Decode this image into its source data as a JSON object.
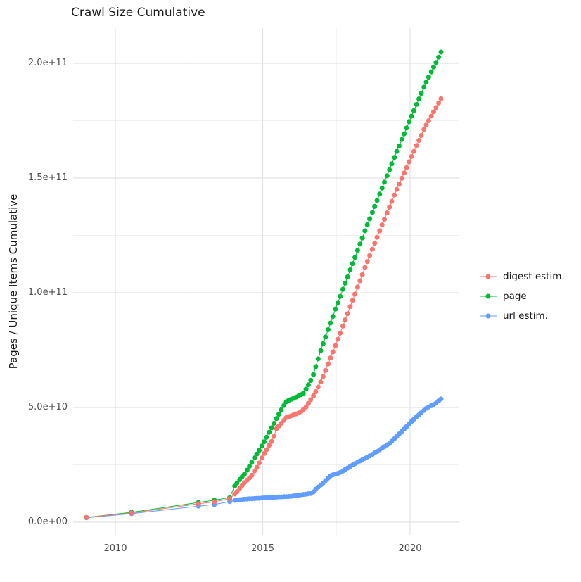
{
  "chart_data": {
    "type": "scatter",
    "title": "Crawl Size Cumulative",
    "xlabel": "",
    "ylabel": "Pages / Unique Items Cumulative",
    "value_unit": "1e9 (values below are billions of pages / unique items)",
    "grid": true,
    "x_axis": {
      "ticks": [
        {
          "value": 2010,
          "label": "2010"
        },
        {
          "value": 2015,
          "label": "2015"
        },
        {
          "value": 2020,
          "label": "2020"
        }
      ],
      "minor": [
        2012.5,
        2017.5
      ],
      "range": [
        2008.45,
        2021.65
      ]
    },
    "y_axis": {
      "ticks": [
        {
          "value": 0,
          "label": "0.0e+00"
        },
        {
          "value": 50,
          "label": "5.0e+10"
        },
        {
          "value": 100,
          "label": "1.0e+11"
        },
        {
          "value": 150,
          "label": "1.5e+11"
        },
        {
          "value": 200,
          "label": "2.0e+11"
        }
      ],
      "minor": [
        25,
        75,
        125,
        175
      ],
      "range": [
        -5.5,
        215
      ]
    },
    "legend": {
      "position": "right",
      "items": [
        {
          "label": "digest estim.",
          "color": "#F8766D"
        },
        {
          "label": "page",
          "color": "#00BA38"
        },
        {
          "label": "url estim.",
          "color": "#619CFF"
        }
      ]
    },
    "draw_order": [
      "page",
      "url estim.",
      "digest estim."
    ],
    "series": [
      {
        "name": "digest estim.",
        "color": "#F8766D",
        "points": [
          [
            2009.02,
            2.1
          ],
          [
            2010.55,
            4.0
          ],
          [
            2012.82,
            8.0
          ],
          [
            2013.36,
            8.9
          ],
          [
            2013.88,
            10.2
          ],
          [
            2014.05,
            12.3
          ],
          [
            2014.13,
            13.3
          ],
          [
            2014.22,
            14.8
          ],
          [
            2014.3,
            16.0
          ],
          [
            2014.38,
            17.2
          ],
          [
            2014.47,
            18.3
          ],
          [
            2014.55,
            19.3
          ],
          [
            2014.63,
            20.5
          ],
          [
            2014.72,
            22.3
          ],
          [
            2014.8,
            23.9
          ],
          [
            2014.88,
            25.8
          ],
          [
            2014.97,
            28.0
          ],
          [
            2015.05,
            29.9
          ],
          [
            2015.13,
            31.6
          ],
          [
            2015.22,
            33.5
          ],
          [
            2015.3,
            35.2
          ],
          [
            2015.38,
            37.4
          ],
          [
            2015.47,
            40.8
          ],
          [
            2015.55,
            42.0
          ],
          [
            2015.63,
            43.1
          ],
          [
            2015.72,
            44.4
          ],
          [
            2015.8,
            45.6
          ],
          [
            2015.88,
            46.0
          ],
          [
            2015.97,
            46.4
          ],
          [
            2016.05,
            46.8
          ],
          [
            2016.13,
            47.2
          ],
          [
            2016.22,
            47.6
          ],
          [
            2016.3,
            48.2
          ],
          [
            2016.38,
            49.1
          ],
          [
            2016.47,
            50.2
          ],
          [
            2016.55,
            51.8
          ],
          [
            2016.63,
            53.4
          ],
          [
            2016.72,
            55.1
          ],
          [
            2016.8,
            56.9
          ],
          [
            2016.88,
            58.9
          ],
          [
            2016.97,
            61.1
          ],
          [
            2017.05,
            63.5
          ],
          [
            2017.13,
            66.1
          ],
          [
            2017.22,
            69.0
          ],
          [
            2017.3,
            71.6
          ],
          [
            2017.38,
            74.2
          ],
          [
            2017.47,
            77.0
          ],
          [
            2017.55,
            79.7
          ],
          [
            2017.63,
            82.4
          ],
          [
            2017.72,
            85.5
          ],
          [
            2017.8,
            88.2
          ],
          [
            2017.88,
            90.9
          ],
          [
            2017.97,
            94.0
          ],
          [
            2018.05,
            96.7
          ],
          [
            2018.13,
            99.4
          ],
          [
            2018.22,
            102.5
          ],
          [
            2018.3,
            105.2
          ],
          [
            2018.38,
            107.9
          ],
          [
            2018.47,
            111.0
          ],
          [
            2018.55,
            113.6
          ],
          [
            2018.63,
            116.2
          ],
          [
            2018.72,
            119.0
          ],
          [
            2018.8,
            121.6
          ],
          [
            2018.88,
            124.2
          ],
          [
            2018.97,
            127.0
          ],
          [
            2019.05,
            129.6
          ],
          [
            2019.13,
            132.0
          ],
          [
            2019.22,
            134.8
          ],
          [
            2019.3,
            137.3
          ],
          [
            2019.38,
            139.8
          ],
          [
            2019.47,
            142.6
          ],
          [
            2019.55,
            145.0
          ],
          [
            2019.63,
            147.3
          ],
          [
            2019.72,
            149.9
          ],
          [
            2019.8,
            152.2
          ],
          [
            2019.88,
            154.5
          ],
          [
            2019.97,
            157.1
          ],
          [
            2020.05,
            159.4
          ],
          [
            2020.13,
            161.6
          ],
          [
            2020.22,
            164.2
          ],
          [
            2020.3,
            166.4
          ],
          [
            2020.38,
            168.6
          ],
          [
            2020.47,
            171.2
          ],
          [
            2020.55,
            173.1
          ],
          [
            2020.63,
            175.0
          ],
          [
            2020.72,
            177.0
          ],
          [
            2020.8,
            178.9
          ],
          [
            2020.88,
            180.7
          ],
          [
            2020.97,
            182.7
          ],
          [
            2021.05,
            184.6
          ]
        ]
      },
      {
        "name": "page",
        "color": "#00BA38",
        "points": [
          [
            2009.02,
            2.1
          ],
          [
            2010.55,
            4.3
          ],
          [
            2012.82,
            8.6
          ],
          [
            2013.36,
            9.6
          ],
          [
            2013.88,
            10.7
          ],
          [
            2014.05,
            15.8
          ],
          [
            2014.13,
            17.1
          ],
          [
            2014.22,
            18.6
          ],
          [
            2014.3,
            19.8
          ],
          [
            2014.38,
            21.0
          ],
          [
            2014.47,
            22.7
          ],
          [
            2014.55,
            24.4
          ],
          [
            2014.63,
            26.1
          ],
          [
            2014.72,
            28.0
          ],
          [
            2014.8,
            29.7
          ],
          [
            2014.88,
            31.3
          ],
          [
            2014.97,
            33.2
          ],
          [
            2015.05,
            35.1
          ],
          [
            2015.13,
            37.0
          ],
          [
            2015.22,
            39.2
          ],
          [
            2015.3,
            41.1
          ],
          [
            2015.38,
            43.1
          ],
          [
            2015.47,
            45.2
          ],
          [
            2015.55,
            47.1
          ],
          [
            2015.63,
            49.0
          ],
          [
            2015.72,
            50.9
          ],
          [
            2015.8,
            52.5
          ],
          [
            2015.88,
            53.1
          ],
          [
            2015.97,
            53.6
          ],
          [
            2016.05,
            54.0
          ],
          [
            2016.13,
            54.5
          ],
          [
            2016.22,
            55.1
          ],
          [
            2016.3,
            55.6
          ],
          [
            2016.38,
            56.2
          ],
          [
            2016.47,
            58.0
          ],
          [
            2016.55,
            59.9
          ],
          [
            2016.63,
            61.8
          ],
          [
            2016.72,
            64.4
          ],
          [
            2016.8,
            67.8
          ],
          [
            2016.88,
            71.2
          ],
          [
            2016.97,
            74.8
          ],
          [
            2017.05,
            77.8
          ],
          [
            2017.13,
            80.7
          ],
          [
            2017.22,
            83.9
          ],
          [
            2017.3,
            86.8
          ],
          [
            2017.38,
            89.7
          ],
          [
            2017.47,
            92.9
          ],
          [
            2017.55,
            95.7
          ],
          [
            2017.63,
            98.4
          ],
          [
            2017.72,
            101.5
          ],
          [
            2017.8,
            104.2
          ],
          [
            2017.88,
            106.9
          ],
          [
            2017.97,
            110.0
          ],
          [
            2018.05,
            112.7
          ],
          [
            2018.13,
            115.4
          ],
          [
            2018.22,
            118.5
          ],
          [
            2018.3,
            121.2
          ],
          [
            2018.38,
            123.9
          ],
          [
            2018.47,
            127.0
          ],
          [
            2018.55,
            129.6
          ],
          [
            2018.63,
            132.2
          ],
          [
            2018.72,
            135.0
          ],
          [
            2018.8,
            137.6
          ],
          [
            2018.88,
            140.2
          ],
          [
            2018.97,
            143.0
          ],
          [
            2019.05,
            145.6
          ],
          [
            2019.13,
            148.2
          ],
          [
            2019.22,
            151.0
          ],
          [
            2019.3,
            153.6
          ],
          [
            2019.38,
            156.2
          ],
          [
            2019.47,
            159.0
          ],
          [
            2019.55,
            161.6
          ],
          [
            2019.63,
            164.0
          ],
          [
            2019.72,
            166.8
          ],
          [
            2019.8,
            169.3
          ],
          [
            2019.88,
            171.8
          ],
          [
            2019.97,
            174.6
          ],
          [
            2020.05,
            177.0
          ],
          [
            2020.13,
            179.4
          ],
          [
            2020.22,
            182.1
          ],
          [
            2020.3,
            184.5
          ],
          [
            2020.38,
            186.9
          ],
          [
            2020.47,
            189.6
          ],
          [
            2020.55,
            191.8
          ],
          [
            2020.63,
            194.0
          ],
          [
            2020.72,
            196.3
          ],
          [
            2020.8,
            198.4
          ],
          [
            2020.88,
            200.4
          ],
          [
            2020.97,
            202.7
          ],
          [
            2021.05,
            204.9
          ]
        ]
      },
      {
        "name": "url estim.",
        "color": "#619CFF",
        "points": [
          [
            2009.02,
            1.9
          ],
          [
            2010.55,
            3.7
          ],
          [
            2012.82,
            7.0
          ],
          [
            2013.36,
            7.7
          ],
          [
            2013.88,
            9.0
          ],
          [
            2014.05,
            9.5
          ],
          [
            2014.13,
            9.7
          ],
          [
            2014.22,
            9.8
          ],
          [
            2014.3,
            9.9
          ],
          [
            2014.38,
            10.0
          ],
          [
            2014.47,
            10.1
          ],
          [
            2014.55,
            10.2
          ],
          [
            2014.63,
            10.2
          ],
          [
            2014.72,
            10.3
          ],
          [
            2014.8,
            10.4
          ],
          [
            2014.88,
            10.4
          ],
          [
            2014.97,
            10.5
          ],
          [
            2015.05,
            10.6
          ],
          [
            2015.13,
            10.6
          ],
          [
            2015.22,
            10.7
          ],
          [
            2015.3,
            10.8
          ],
          [
            2015.38,
            10.8
          ],
          [
            2015.47,
            10.9
          ],
          [
            2015.55,
            11.0
          ],
          [
            2015.63,
            11.0
          ],
          [
            2015.72,
            11.1
          ],
          [
            2015.8,
            11.1
          ],
          [
            2015.88,
            11.2
          ],
          [
            2015.97,
            11.3
          ],
          [
            2016.05,
            11.5
          ],
          [
            2016.13,
            11.6
          ],
          [
            2016.22,
            11.8
          ],
          [
            2016.3,
            11.9
          ],
          [
            2016.38,
            12.1
          ],
          [
            2016.47,
            12.2
          ],
          [
            2016.55,
            12.4
          ],
          [
            2016.63,
            12.5
          ],
          [
            2016.72,
            13.2
          ],
          [
            2016.8,
            14.4
          ],
          [
            2016.88,
            15.3
          ],
          [
            2016.97,
            16.2
          ],
          [
            2017.05,
            17.1
          ],
          [
            2017.13,
            18.1
          ],
          [
            2017.22,
            19.2
          ],
          [
            2017.3,
            20.2
          ],
          [
            2017.38,
            20.6
          ],
          [
            2017.47,
            21.0
          ],
          [
            2017.55,
            21.3
          ],
          [
            2017.63,
            21.7
          ],
          [
            2017.72,
            22.3
          ],
          [
            2017.8,
            23.0
          ],
          [
            2017.88,
            23.6
          ],
          [
            2017.97,
            24.3
          ],
          [
            2018.05,
            24.9
          ],
          [
            2018.13,
            25.5
          ],
          [
            2018.22,
            26.1
          ],
          [
            2018.3,
            26.7
          ],
          [
            2018.38,
            27.2
          ],
          [
            2018.47,
            27.8
          ],
          [
            2018.55,
            28.4
          ],
          [
            2018.63,
            28.9
          ],
          [
            2018.72,
            29.5
          ],
          [
            2018.8,
            30.2
          ],
          [
            2018.88,
            30.8
          ],
          [
            2018.97,
            31.6
          ],
          [
            2019.05,
            32.3
          ],
          [
            2019.13,
            32.9
          ],
          [
            2019.22,
            33.7
          ],
          [
            2019.3,
            34.3
          ],
          [
            2019.38,
            35.3
          ],
          [
            2019.47,
            36.4
          ],
          [
            2019.55,
            37.4
          ],
          [
            2019.63,
            38.5
          ],
          [
            2019.72,
            39.6
          ],
          [
            2019.8,
            40.6
          ],
          [
            2019.88,
            41.7
          ],
          [
            2019.97,
            42.9
          ],
          [
            2020.05,
            43.9
          ],
          [
            2020.13,
            44.9
          ],
          [
            2020.22,
            46.0
          ],
          [
            2020.3,
            46.8
          ],
          [
            2020.38,
            47.7
          ],
          [
            2020.47,
            48.7
          ],
          [
            2020.55,
            49.6
          ],
          [
            2020.63,
            50.2
          ],
          [
            2020.72,
            50.8
          ],
          [
            2020.8,
            51.3
          ],
          [
            2020.88,
            51.9
          ],
          [
            2020.97,
            52.9
          ],
          [
            2021.05,
            53.7
          ]
        ]
      }
    ]
  }
}
